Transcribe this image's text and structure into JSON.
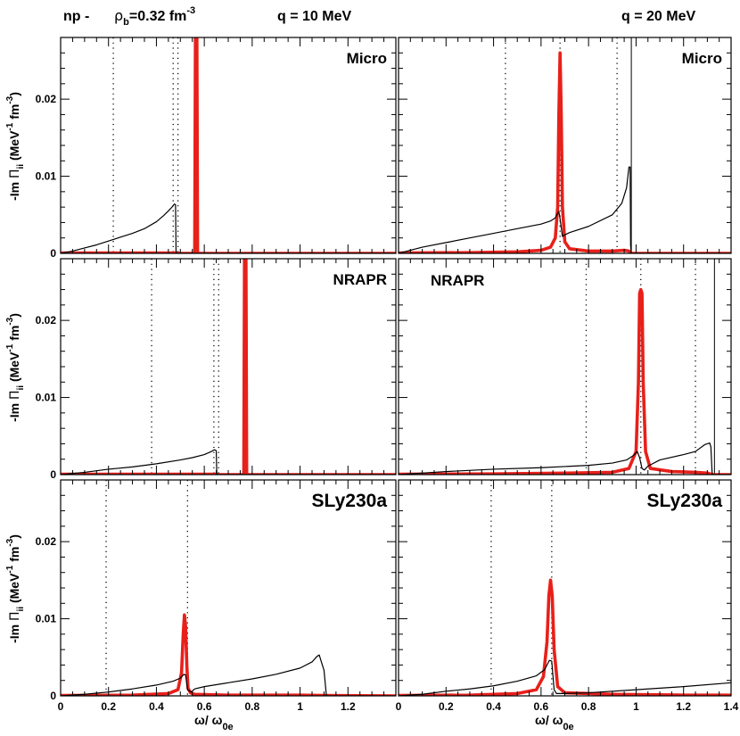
{
  "header": {
    "reaction": "np -",
    "density_symbol": "ρ",
    "density_sub": "b",
    "density_eq": "=0.32 fm",
    "density_sup": "-3",
    "q_left": "q = 10 MeV",
    "q_right": "q = 20 MeV"
  },
  "axes": {
    "xlabel": {
      "main": "ω/ ω",
      "sub": "0e"
    },
    "ylabel": {
      "pre": "-Im ",
      "pi": "Π",
      "pi_sub": "ii",
      "units1": " (MeV",
      "sup1": "-1",
      "units2": " fm",
      "sup2": "-3",
      "close": ")"
    },
    "xlim": [
      0,
      1.4
    ],
    "ylim": [
      0,
      0.028
    ],
    "x_ticks": [
      0,
      0.2,
      0.4,
      0.6,
      0.8,
      1,
      1.2,
      1.4
    ],
    "x_tick_labels": [
      "0",
      "0.2",
      "0.4",
      "0.6",
      "0.8",
      "1",
      "1.2",
      "1.4"
    ],
    "y_ticks": [
      0,
      0.01,
      0.02
    ],
    "y_tick_labels": [
      "0",
      "0.01",
      "0.02"
    ]
  },
  "colors": {
    "black_curve": "#000000",
    "red_curve": "#e8201a",
    "frame": "#000000"
  },
  "chart_data": [
    {
      "type": "line",
      "panel": "Micro, q = 10 MeV",
      "label": "Micro",
      "dotted_lines": [
        0.22,
        0.47,
        0.49
      ],
      "series": [
        {
          "name": "black",
          "x": [
            0,
            0.05,
            0.1,
            0.15,
            0.2,
            0.25,
            0.3,
            0.35,
            0.4,
            0.43,
            0.45,
            0.465,
            0.475,
            0.48,
            0.482,
            0.486,
            1.4
          ],
          "y": [
            0,
            0.0003,
            0.0007,
            0.0011,
            0.0016,
            0.0021,
            0.0026,
            0.0032,
            0.0041,
            0.0049,
            0.0055,
            0.006,
            0.0064,
            0.0063,
            0.0002,
            0,
            0
          ]
        },
        {
          "name": "red",
          "x": [
            0,
            0.485,
            0.5,
            0.56,
            0.563,
            0.566,
            0.569,
            0.572,
            0.6,
            1.4
          ],
          "y": [
            5e-05,
            5e-05,
            0,
            0,
            0.03,
            0.03,
            0.03,
            0,
            0,
            0
          ]
        }
      ]
    },
    {
      "type": "line",
      "panel": "Micro, q = 20 MeV",
      "label": "Micro",
      "dotted_lines": [
        0.45,
        0.68,
        0.92
      ],
      "solid_lines": [
        0.98
      ],
      "series": [
        {
          "name": "black",
          "x": [
            0,
            0.1,
            0.2,
            0.3,
            0.4,
            0.5,
            0.6,
            0.64,
            0.66,
            0.67,
            0.675,
            0.68,
            0.69,
            0.7,
            0.72,
            0.8,
            0.9,
            0.94,
            0.96,
            0.97,
            0.975,
            0.977,
            0.98,
            1.4
          ],
          "y": [
            0,
            0.0008,
            0.0014,
            0.002,
            0.0026,
            0.0032,
            0.0038,
            0.0042,
            0.0046,
            0.0052,
            0.0054,
            0.0045,
            0.0022,
            0.0024,
            0.0027,
            0.0035,
            0.005,
            0.0065,
            0.0085,
            0.0112,
            0.0112,
            0.001,
            0,
            0
          ]
        },
        {
          "name": "red",
          "x": [
            0,
            0.3,
            0.5,
            0.6,
            0.64,
            0.66,
            0.67,
            0.675,
            0.68,
            0.685,
            0.69,
            0.7,
            0.72,
            0.8,
            0.9,
            0.95,
            0.97,
            0.98,
            1.4
          ],
          "y": [
            5e-05,
            0.0001,
            0.0002,
            0.0004,
            0.0008,
            0.002,
            0.006,
            0.018,
            0.026,
            0.018,
            0.006,
            0.0015,
            0.0006,
            0.0003,
            0.0003,
            0.0004,
            0.0003,
            0,
            0
          ]
        }
      ]
    },
    {
      "type": "line",
      "panel": "NRAPR, q = 10 MeV",
      "label": "NRAPR",
      "dotted_lines": [
        0.38,
        0.64,
        0.66
      ],
      "series": [
        {
          "name": "black",
          "x": [
            0,
            0.1,
            0.2,
            0.3,
            0.4,
            0.5,
            0.55,
            0.6,
            0.63,
            0.64,
            0.645,
            0.65,
            0.652,
            0.655,
            1.4
          ],
          "y": [
            0,
            0.0003,
            0.0007,
            0.001,
            0.0014,
            0.0019,
            0.0022,
            0.0026,
            0.003,
            0.0032,
            0.0032,
            0.0031,
            0.0002,
            0,
            0
          ]
        },
        {
          "name": "red",
          "x": [
            0,
            0.65,
            0.66,
            0.765,
            0.768,
            0.771,
            0.774,
            0.777,
            0.8,
            1.4
          ],
          "y": [
            5e-05,
            5e-05,
            0,
            0,
            0.03,
            0.03,
            0.03,
            0,
            0,
            0
          ]
        }
      ]
    },
    {
      "type": "line",
      "panel": "NRAPR, q = 20 MeV",
      "label": "NRAPR",
      "dotted_lines": [
        0.79,
        1.02,
        1.25
      ],
      "solid_lines": [
        1.33
      ],
      "series": [
        {
          "name": "black",
          "x": [
            0,
            0.2,
            0.4,
            0.6,
            0.8,
            0.9,
            0.96,
            0.99,
            1.005,
            1.015,
            1.025,
            1.035,
            1.05,
            1.1,
            1.2,
            1.25,
            1.29,
            1.31,
            1.315,
            1.32,
            1.322,
            1.4
          ],
          "y": [
            0,
            0.0004,
            0.0007,
            0.0009,
            0.0012,
            0.0015,
            0.0019,
            0.0025,
            0.003,
            0.0022,
            0.0008,
            0.0006,
            0.0011,
            0.0019,
            0.0026,
            0.003,
            0.0039,
            0.0041,
            0.0036,
            0.0003,
            0,
            0
          ]
        },
        {
          "name": "red",
          "x": [
            0,
            0.4,
            0.7,
            0.9,
            0.97,
            1.0,
            1.01,
            1.015,
            1.02,
            1.025,
            1.03,
            1.04,
            1.06,
            1.15,
            1.25,
            1.3,
            1.32,
            1.4
          ],
          "y": [
            5e-05,
            0.0001,
            0.0002,
            0.0003,
            0.0008,
            0.003,
            0.012,
            0.0235,
            0.024,
            0.0235,
            0.012,
            0.003,
            0.0008,
            0.0004,
            0.0003,
            0.0002,
            0,
            0
          ]
        }
      ]
    },
    {
      "type": "line",
      "panel": "SLy230a, q = 10 MeV",
      "label": "SLy230a",
      "dotted_lines": [
        0.19,
        0.53
      ],
      "series": [
        {
          "name": "black",
          "x": [
            0,
            0.1,
            0.2,
            0.3,
            0.4,
            0.47,
            0.5,
            0.515,
            0.522,
            0.53,
            0.545,
            0.56,
            0.6,
            0.7,
            0.8,
            0.9,
            1.0,
            1.05,
            1.07,
            1.08,
            1.1,
            1.11,
            1.4
          ],
          "y": [
            0,
            0.0002,
            0.0005,
            0.0009,
            0.0014,
            0.0019,
            0.0023,
            0.0028,
            0.0027,
            0.0008,
            0.0005,
            0.0009,
            0.0012,
            0.0017,
            0.0022,
            0.0028,
            0.0036,
            0.0044,
            0.0051,
            0.0053,
            0.0033,
            0,
            0
          ]
        },
        {
          "name": "red",
          "x": [
            0,
            0.3,
            0.45,
            0.49,
            0.505,
            0.512,
            0.517,
            0.522,
            0.527,
            0.532,
            0.542,
            0.56,
            0.7,
            1.0,
            1.1,
            1.4
          ],
          "y": [
            5e-05,
            0.0001,
            0.0003,
            0.0008,
            0.003,
            0.008,
            0.0105,
            0.009,
            0.004,
            0.001,
            0.0004,
            0.0002,
            0.0001,
            0.0001,
            5e-05,
            0
          ]
        }
      ]
    },
    {
      "type": "line",
      "panel": "SLy230a, q = 20 MeV",
      "label": "SLy230a",
      "dotted_lines": [
        0.39,
        0.645
      ],
      "series": [
        {
          "name": "black",
          "x": [
            0,
            0.1,
            0.2,
            0.3,
            0.4,
            0.5,
            0.58,
            0.615,
            0.635,
            0.645,
            0.655,
            0.665,
            0.7,
            0.8,
            1.0,
            1.2,
            1.4
          ],
          "y": [
            0,
            0.0002,
            0.0006,
            0.0009,
            0.0013,
            0.0019,
            0.0026,
            0.0034,
            0.0046,
            0.0045,
            0.0008,
            0.0003,
            0.0003,
            0.0004,
            0.0008,
            0.0012,
            0.0017
          ]
        },
        {
          "name": "red",
          "x": [
            0,
            0.3,
            0.5,
            0.58,
            0.61,
            0.625,
            0.633,
            0.64,
            0.647,
            0.655,
            0.67,
            0.7,
            0.9,
            1.2,
            1.4
          ],
          "y": [
            5e-05,
            0.0001,
            0.0003,
            0.0008,
            0.0025,
            0.007,
            0.013,
            0.015,
            0.013,
            0.006,
            0.0012,
            0.0004,
            0.0002,
            0.0001,
            0.0001
          ]
        }
      ]
    }
  ]
}
